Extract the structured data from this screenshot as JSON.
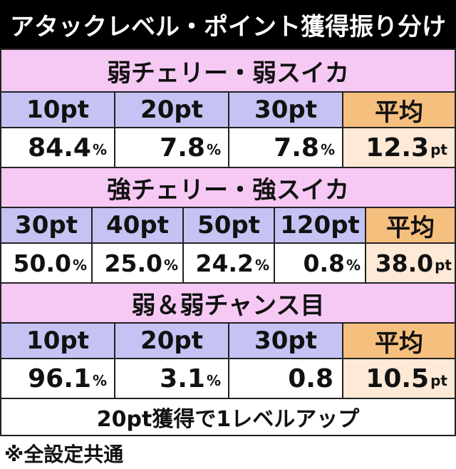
{
  "title": "アタックレベル・ポイント獲得振り分け",
  "sections": [
    {
      "heading": "弱チェリー・弱スイカ",
      "headers": [
        "10pt",
        "20pt",
        "30pt",
        "平均"
      ],
      "values": [
        {
          "num": "84.4",
          "unit": "%"
        },
        {
          "num": "7.8",
          "unit": "%"
        },
        {
          "num": "7.8",
          "unit": "%"
        },
        {
          "num": "12.3",
          "unit": "pt"
        }
      ]
    },
    {
      "heading": "強チェリー・強スイカ",
      "headers": [
        "30pt",
        "40pt",
        "50pt",
        "120pt",
        "平均"
      ],
      "values": [
        {
          "num": "50.0",
          "unit": "%"
        },
        {
          "num": "25.0",
          "unit": "%"
        },
        {
          "num": "24.2",
          "unit": "%"
        },
        {
          "num": "0.8",
          "unit": "%"
        },
        {
          "num": "38.0",
          "unit": "pt"
        }
      ]
    },
    {
      "heading": "弱＆弱チャンス目",
      "headers": [
        "10pt",
        "20pt",
        "30pt",
        "平均"
      ],
      "values": [
        {
          "num": "96.1",
          "unit": "%"
        },
        {
          "num": "3.1",
          "unit": "%"
        },
        {
          "num": "0.8",
          "unit": ""
        },
        {
          "num": "10.5",
          "unit": "pt"
        }
      ]
    }
  ],
  "footer": "20pt獲得で1レベルアップ",
  "note": "※全設定共通",
  "colors": {
    "title_bg": "#000000",
    "section_bg": "#f6c9f4",
    "header_bg": "#c5c3f3",
    "avg_header_bg": "#f5bf7e",
    "avg_value_bg": "#fde9d6"
  }
}
